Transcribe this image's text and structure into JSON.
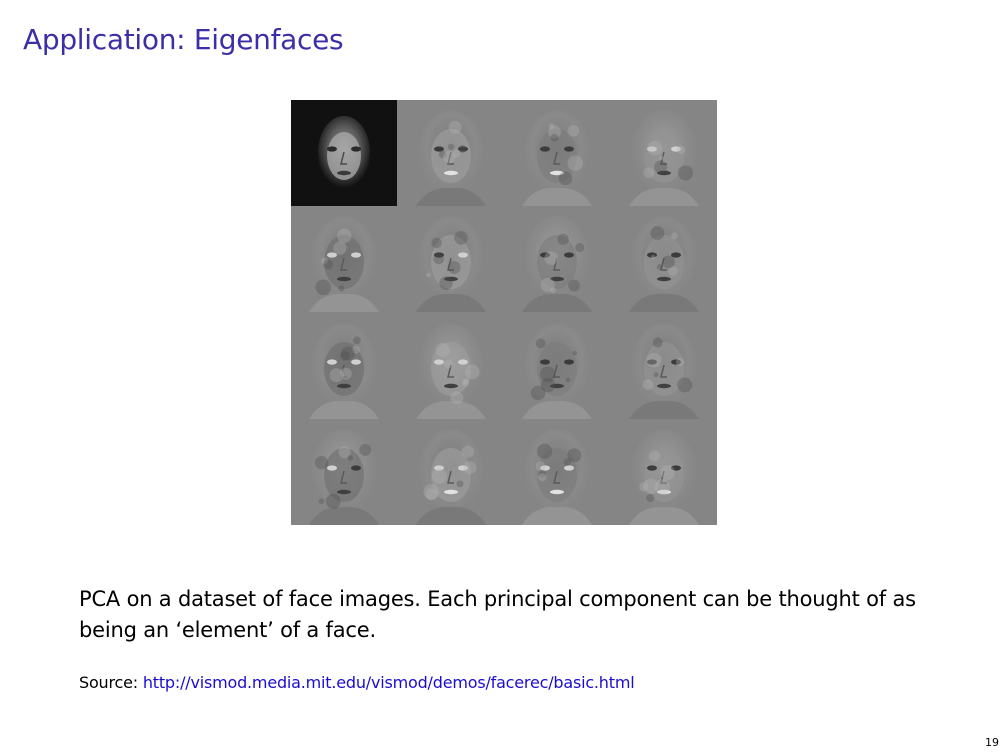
{
  "slide": {
    "title": "Application: Eigenfaces",
    "caption": "PCA on a dataset of face images. Each principal component can be thought of as being an ‘element’ of a face.",
    "source_label": "Source:",
    "source_url": "http://vismod.media.mit.edu/vismod/demos/facerec/basic.html",
    "page_number": "19"
  },
  "colors": {
    "title": "#3b2fa8",
    "link": "#1a0dcf",
    "figure_background": "#858585",
    "mean_face_background": "#111111"
  },
  "figure": {
    "rows": 4,
    "columns": 4,
    "tiles": [
      "mean-face",
      "eigenface-1",
      "eigenface-2",
      "eigenface-3",
      "eigenface-4",
      "eigenface-5",
      "eigenface-6",
      "eigenface-7",
      "eigenface-8",
      "eigenface-9",
      "eigenface-10",
      "eigenface-11",
      "eigenface-12",
      "eigenface-13",
      "eigenface-14",
      "eigenface-15"
    ]
  }
}
